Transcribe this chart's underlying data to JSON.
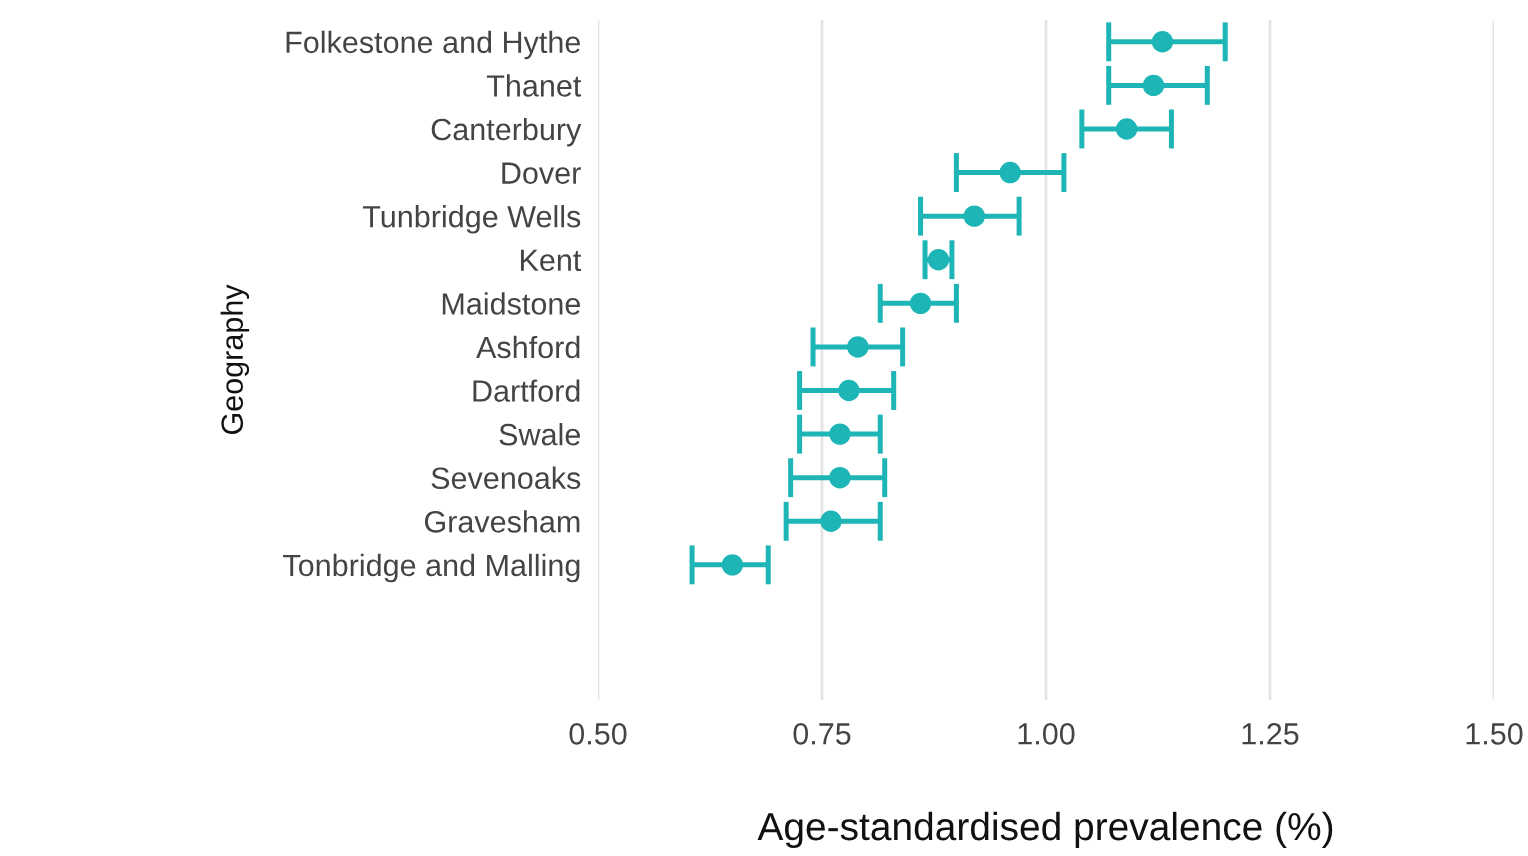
{
  "chart_data": {
    "type": "scatter",
    "orientation": "horizontal",
    "xlabel": "Age-standardised prevalence (%)",
    "ylabel": "Geography",
    "categories": [
      "Folkestone and Hythe",
      "Thanet",
      "Canterbury",
      "Dover",
      "Tunbridge Wells",
      "Kent",
      "Maidstone",
      "Ashford",
      "Dartford",
      "Swale",
      "Sevenoaks",
      "Gravesham",
      "Tonbridge and Malling"
    ],
    "series": [
      {
        "color": "#1db5b5",
        "values": [
          1.13,
          1.12,
          1.09,
          0.96,
          0.92,
          0.88,
          0.86,
          0.79,
          0.78,
          0.77,
          0.77,
          0.76,
          0.65
        ],
        "errors": [
          [
            1.07,
            1.2
          ],
          [
            1.07,
            1.18
          ],
          [
            1.04,
            1.14
          ],
          [
            0.9,
            1.02
          ],
          [
            0.86,
            0.97
          ],
          [
            0.865,
            0.895
          ],
          [
            0.815,
            0.9
          ],
          [
            0.74,
            0.84
          ],
          [
            0.725,
            0.83
          ],
          [
            0.725,
            0.815
          ],
          [
            0.715,
            0.82
          ],
          [
            0.71,
            0.815
          ],
          [
            0.605,
            0.69
          ]
        ]
      }
    ],
    "xlim": [
      0.5,
      1.5
    ],
    "xticks": [
      {
        "value": 0.5,
        "label": "0.50"
      },
      {
        "value": 0.75,
        "label": "0.75"
      },
      {
        "value": 1.0,
        "label": "1.00"
      },
      {
        "value": 1.25,
        "label": "1.25"
      },
      {
        "value": 1.5,
        "label": "1.50"
      }
    ],
    "grid": "x",
    "marker": "circle"
  }
}
